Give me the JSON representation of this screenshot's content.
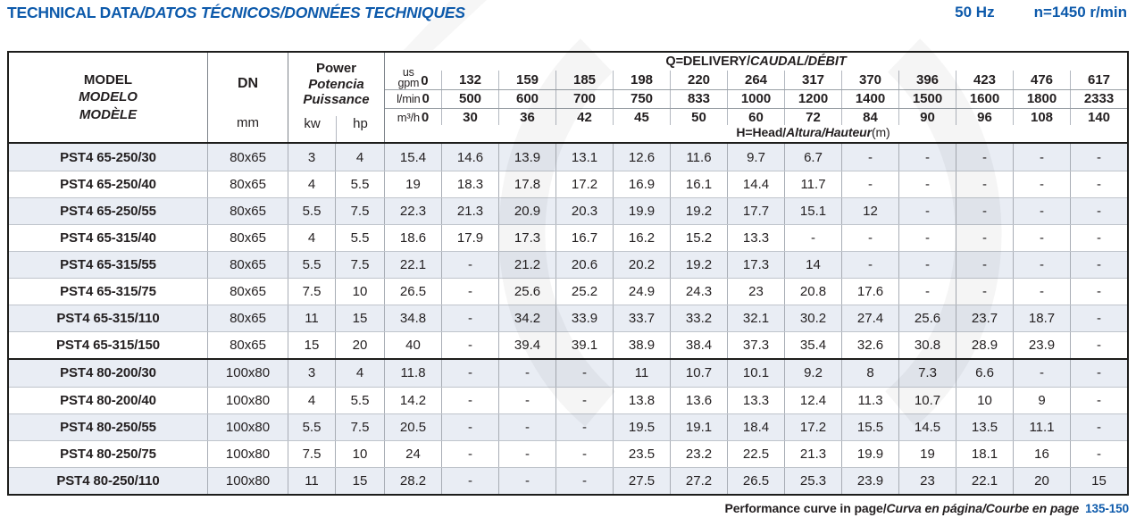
{
  "colors": {
    "accent_blue": "#0d5aab",
    "row_shade": "#e9edf4",
    "text": "#231f20"
  },
  "header": {
    "title_main": "TECHNICAL DATA",
    "title_i18n": "/DATOS TÉCNICOS/DONNÉES TECHNIQUES",
    "frequency": "50 Hz",
    "speed": "n=1450 r/min"
  },
  "table": {
    "header": {
      "model_en": "MODEL",
      "model_es": "MODELO",
      "model_fr": "MODÈLE",
      "dn": "DN",
      "dn_unit": "mm",
      "power_en": "Power",
      "power_es": "Potencia",
      "power_fr": "Puissance",
      "power_unit_kw": "kw",
      "power_unit_hp": "hp",
      "q_title_main": "Q=DELIVERY/",
      "q_title_i18n": "CAUDAL/DÉBIT",
      "h_title_main": "H=Head/",
      "h_title_i18n": "Altura/Hauteur",
      "h_title_unit": "(m)",
      "unit_gpm_line1": "us",
      "unit_gpm_line2": "gpm",
      "unit_lmin": "l/min",
      "unit_m3h": "m³/h",
      "gpm": [
        "0",
        "132",
        "159",
        "185",
        "198",
        "220",
        "264",
        "317",
        "370",
        "396",
        "423",
        "476",
        "617"
      ],
      "lmin": [
        "0",
        "500",
        "600",
        "700",
        "750",
        "833",
        "1000",
        "1200",
        "1400",
        "1500",
        "1600",
        "1800",
        "2333"
      ],
      "m3h": [
        "0",
        "30",
        "36",
        "42",
        "45",
        "50",
        "60",
        "72",
        "84",
        "90",
        "96",
        "108",
        "140"
      ]
    },
    "rows": [
      {
        "section": "65",
        "model": "PST4 65-250/30",
        "dn": "80x65",
        "kw": "3",
        "hp": "4",
        "head": [
          "15.4",
          "14.6",
          "13.9",
          "13.1",
          "12.6",
          "11.6",
          "9.7",
          "6.7",
          "-",
          "-",
          "-",
          "-",
          "-"
        ]
      },
      {
        "section": "65",
        "model": "PST4 65-250/40",
        "dn": "80x65",
        "kw": "4",
        "hp": "5.5",
        "head": [
          "19",
          "18.3",
          "17.8",
          "17.2",
          "16.9",
          "16.1",
          "14.4",
          "11.7",
          "-",
          "-",
          "-",
          "-",
          "-"
        ]
      },
      {
        "section": "65",
        "model": "PST4 65-250/55",
        "dn": "80x65",
        "kw": "5.5",
        "hp": "7.5",
        "head": [
          "22.3",
          "21.3",
          "20.9",
          "20.3",
          "19.9",
          "19.2",
          "17.7",
          "15.1",
          "12",
          "-",
          "-",
          "-",
          "-"
        ]
      },
      {
        "section": "65",
        "model": "PST4 65-315/40",
        "dn": "80x65",
        "kw": "4",
        "hp": "5.5",
        "head": [
          "18.6",
          "17.9",
          "17.3",
          "16.7",
          "16.2",
          "15.2",
          "13.3",
          "-",
          "-",
          "-",
          "-",
          "-",
          "-"
        ]
      },
      {
        "section": "65",
        "model": "PST4 65-315/55",
        "dn": "80x65",
        "kw": "5.5",
        "hp": "7.5",
        "head": [
          "22.1",
          "-",
          "21.2",
          "20.6",
          "20.2",
          "19.2",
          "17.3",
          "14",
          "-",
          "-",
          "-",
          "-",
          "-"
        ]
      },
      {
        "section": "65",
        "model": "PST4 65-315/75",
        "dn": "80x65",
        "kw": "7.5",
        "hp": "10",
        "head": [
          "26.5",
          "-",
          "25.6",
          "25.2",
          "24.9",
          "24.3",
          "23",
          "20.8",
          "17.6",
          "-",
          "-",
          "-",
          "-"
        ]
      },
      {
        "section": "65",
        "model": "PST4 65-315/110",
        "dn": "80x65",
        "kw": "11",
        "hp": "15",
        "head": [
          "34.8",
          "-",
          "34.2",
          "33.9",
          "33.7",
          "33.2",
          "32.1",
          "30.2",
          "27.4",
          "25.6",
          "23.7",
          "18.7",
          "-"
        ]
      },
      {
        "section": "65",
        "model": "PST4 65-315/150",
        "dn": "80x65",
        "kw": "15",
        "hp": "20",
        "head": [
          "40",
          "-",
          "39.4",
          "39.1",
          "38.9",
          "38.4",
          "37.3",
          "35.4",
          "32.6",
          "30.8",
          "28.9",
          "23.9",
          "-"
        ]
      },
      {
        "section": "80",
        "model": "PST4 80-200/30",
        "dn": "100x80",
        "kw": "3",
        "hp": "4",
        "head": [
          "11.8",
          "-",
          "-",
          "-",
          "11",
          "10.7",
          "10.1",
          "9.2",
          "8",
          "7.3",
          "6.6",
          "-",
          "-"
        ]
      },
      {
        "section": "80",
        "model": "PST4 80-200/40",
        "dn": "100x80",
        "kw": "4",
        "hp": "5.5",
        "head": [
          "14.2",
          "-",
          "-",
          "-",
          "13.8",
          "13.6",
          "13.3",
          "12.4",
          "11.3",
          "10.7",
          "10",
          "9",
          "-"
        ]
      },
      {
        "section": "80",
        "model": "PST4 80-250/55",
        "dn": "100x80",
        "kw": "5.5",
        "hp": "7.5",
        "head": [
          "20.5",
          "-",
          "-",
          "-",
          "19.5",
          "19.1",
          "18.4",
          "17.2",
          "15.5",
          "14.5",
          "13.5",
          "11.1",
          "-"
        ]
      },
      {
        "section": "80",
        "model": "PST4 80-250/75",
        "dn": "100x80",
        "kw": "7.5",
        "hp": "10",
        "head": [
          "24",
          "-",
          "-",
          "-",
          "23.5",
          "23.2",
          "22.5",
          "21.3",
          "19.9",
          "19",
          "18.1",
          "16",
          "-"
        ]
      },
      {
        "section": "80",
        "model": "PST4 80-250/110",
        "dn": "100x80",
        "kw": "11",
        "hp": "15",
        "head": [
          "28.2",
          "-",
          "-",
          "-",
          "27.5",
          "27.2",
          "26.5",
          "25.3",
          "23.9",
          "23",
          "22.1",
          "20",
          "15"
        ]
      }
    ]
  },
  "footer": {
    "label_main": "Performance curve in page/",
    "label_i18n": "Curva en página/Courbe en page",
    "pages": "135-150"
  }
}
